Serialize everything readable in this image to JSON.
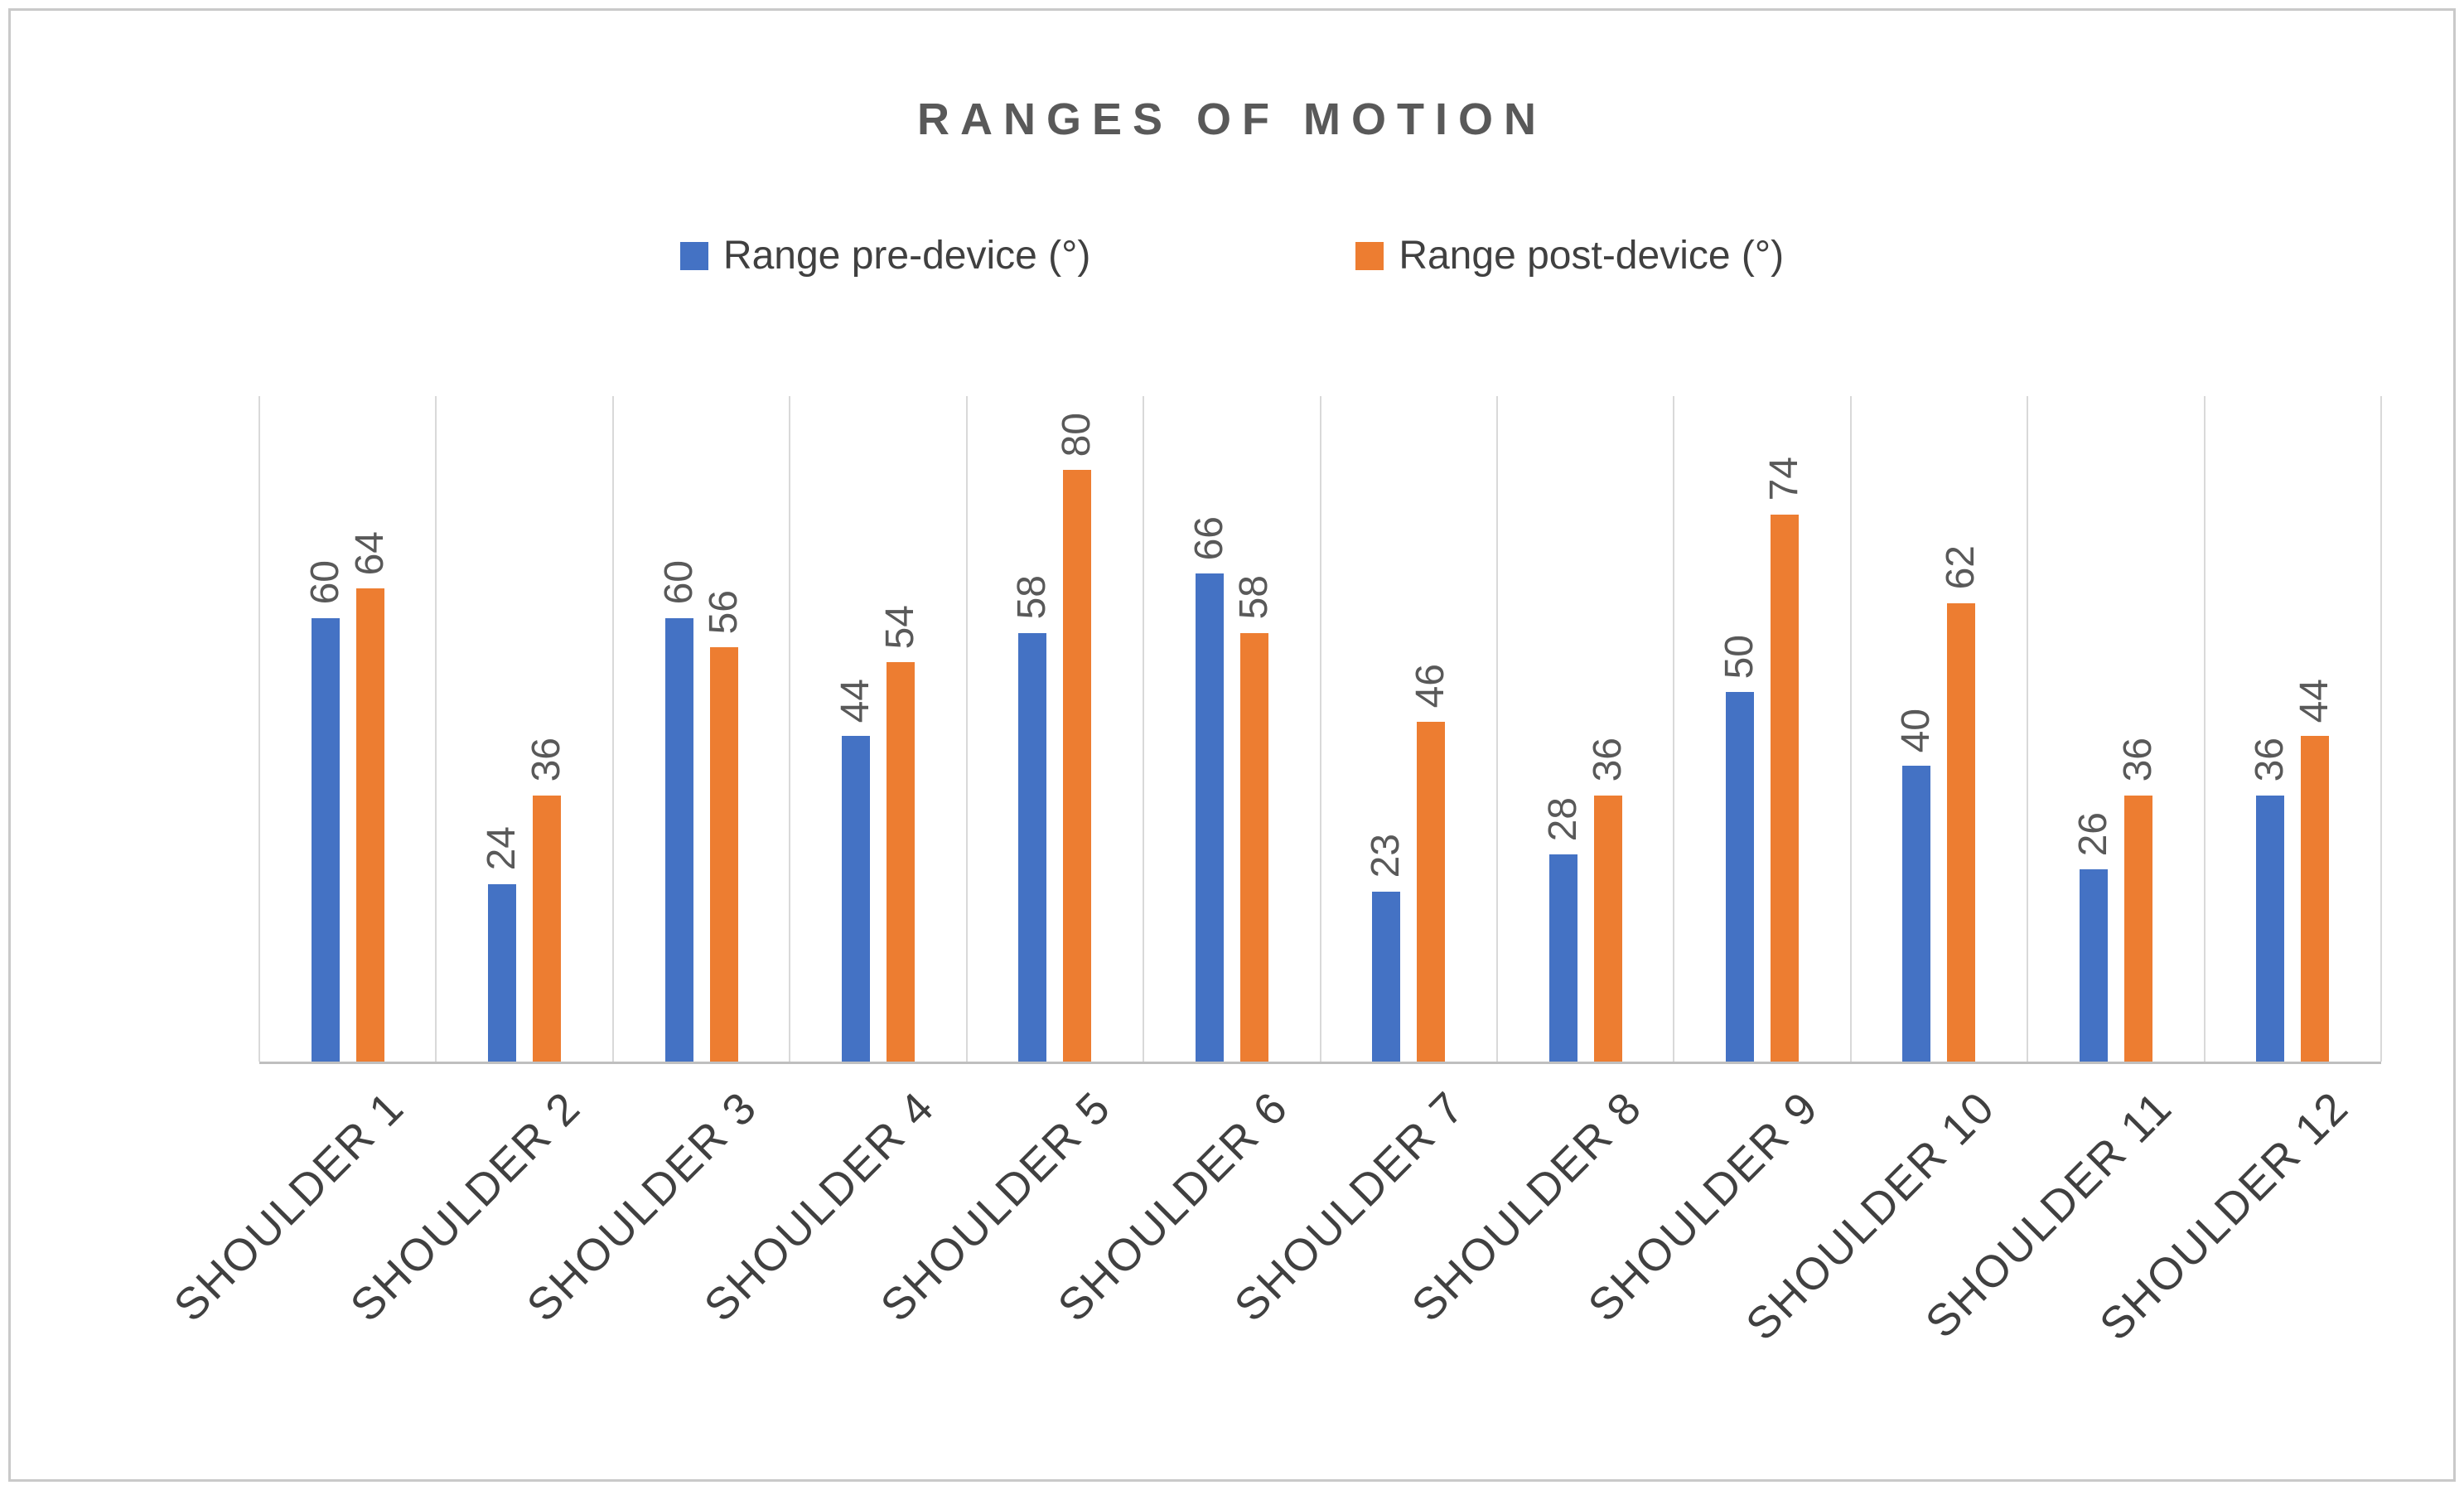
{
  "chart_data": {
    "type": "bar",
    "title": "RANGES OF MOTION",
    "categories": [
      "SHOULDER 1",
      "SHOULDER 2",
      "SHOULDER 3",
      "SHOULDER 4",
      "SHOULDER 5",
      "SHOULDER 6",
      "SHOULDER 7",
      "SHOULDER 8",
      "SHOULDER 9",
      "SHOULDER 10",
      "SHOULDER 11",
      "SHOULDER 12"
    ],
    "series": [
      {
        "name": "Range pre-device (°)",
        "color": "#4472C4",
        "values": [
          60,
          24,
          60,
          44,
          58,
          66,
          23,
          28,
          50,
          40,
          26,
          36
        ]
      },
      {
        "name": "Range post-device (°)",
        "color": "#ED7D31",
        "values": [
          64,
          36,
          56,
          54,
          80,
          58,
          46,
          36,
          74,
          62,
          36,
          44
        ]
      }
    ],
    "ylim": [
      0,
      90
    ],
    "xlabel": "",
    "ylabel": "",
    "grid": "vertical-category-gridlines",
    "gridline_color": "#D9D9D9",
    "axis_line_color": "#BFBFBF",
    "legend_position": "top",
    "data_labels": "rotated-vertical-above-bars",
    "x_label_rotation": -45,
    "title_color": "#595959",
    "label_color": "#595959",
    "axis_label_color": "#404040"
  }
}
